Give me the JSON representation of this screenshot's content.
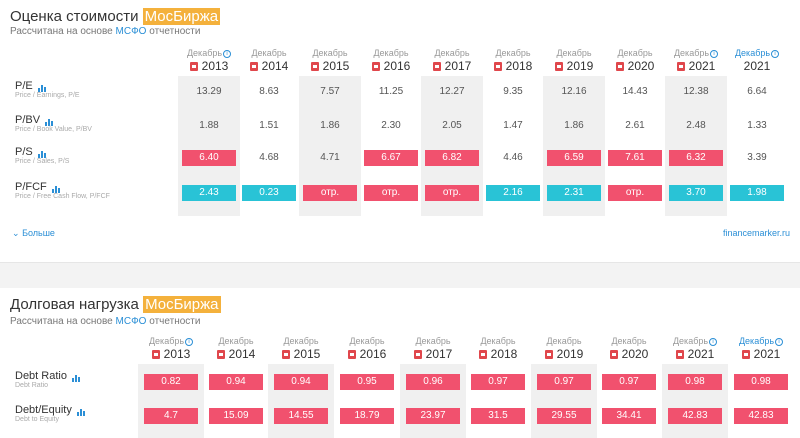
{
  "valuation": {
    "title": "Оценка стоимости",
    "title_highlight": "МосБиржа",
    "subtitle_prefix": "Рассчитана на основе",
    "subtitle_link": "МСФО",
    "subtitle_suffix": "отчетности",
    "columns": [
      {
        "month": "Декабрь",
        "year": "2013",
        "info": true
      },
      {
        "month": "Декабрь",
        "year": "2014",
        "info": false
      },
      {
        "month": "Декабрь",
        "year": "2015",
        "info": false
      },
      {
        "month": "Декабрь",
        "year": "2016",
        "info": false
      },
      {
        "month": "Декабрь",
        "year": "2017",
        "info": false
      },
      {
        "month": "Декабрь",
        "year": "2018",
        "info": false
      },
      {
        "month": "Декабрь",
        "year": "2019",
        "info": false
      },
      {
        "month": "Декабрь",
        "year": "2020",
        "info": false
      },
      {
        "month": "Декабрь",
        "year": "2021",
        "info": true
      },
      {
        "month": "Декабрь",
        "year": "2021",
        "info": true,
        "blue": true,
        "nopdf": true
      }
    ],
    "rows": [
      {
        "label": "P/E",
        "sub": "Price / Earnings, P/E",
        "values": [
          "13.29",
          "8.63",
          "7.57",
          "11.25",
          "12.27",
          "9.35",
          "12.16",
          "14.43",
          "12.38",
          "6.64"
        ],
        "styles": [
          "",
          "",
          "",
          "",
          "",
          "",
          "",
          "",
          "",
          ""
        ]
      },
      {
        "label": "P/BV",
        "sub": "Price / Book Value, P/BV",
        "values": [
          "1.88",
          "1.51",
          "1.86",
          "2.30",
          "2.05",
          "1.47",
          "1.86",
          "2.61",
          "2.48",
          "1.33"
        ],
        "styles": [
          "",
          "",
          "",
          "",
          "",
          "",
          "",
          "",
          "",
          ""
        ]
      },
      {
        "label": "P/S",
        "sub": "Price / Sales, P/S",
        "values": [
          "6.40",
          "4.68",
          "4.71",
          "6.67",
          "6.82",
          "4.46",
          "6.59",
          "7.61",
          "6.32",
          "3.39"
        ],
        "styles": [
          "red",
          "",
          "",
          "red",
          "red",
          "",
          "red",
          "red",
          "red",
          ""
        ]
      },
      {
        "label": "P/FCF",
        "sub": "Price / Free Cash Flow, P/FCF",
        "values": [
          "2.43",
          "0.23",
          "отр.",
          "отр.",
          "отр.",
          "2.16",
          "2.31",
          "отр.",
          "3.70",
          "1.98"
        ],
        "styles": [
          "cyan",
          "cyan",
          "red",
          "red",
          "red",
          "cyan",
          "cyan",
          "red",
          "cyan",
          "cyan"
        ]
      }
    ],
    "more_label": "Больше",
    "source": "financemarker.ru"
  },
  "debt": {
    "title": "Долговая нагрузка",
    "title_highlight": "МосБиржа",
    "subtitle_prefix": "Рассчитана на основе",
    "subtitle_link": "МСФО",
    "subtitle_suffix": "отчетности",
    "columns": [
      {
        "month": "Декабрь",
        "year": "2013",
        "info": true
      },
      {
        "month": "Декабрь",
        "year": "2014",
        "info": false
      },
      {
        "month": "Декабрь",
        "year": "2015",
        "info": false
      },
      {
        "month": "Декабрь",
        "year": "2016",
        "info": false
      },
      {
        "month": "Декабрь",
        "year": "2017",
        "info": false
      },
      {
        "month": "Декабрь",
        "year": "2018",
        "info": false
      },
      {
        "month": "Декабрь",
        "year": "2019",
        "info": false
      },
      {
        "month": "Декабрь",
        "year": "2020",
        "info": false
      },
      {
        "month": "Декабрь",
        "year": "2021",
        "info": true
      },
      {
        "month": "Декабрь",
        "year": "2021",
        "info": true,
        "blue": true
      }
    ],
    "rows": [
      {
        "label": "Debt Ratio",
        "sub": "Debt Ratio",
        "values": [
          "0.82",
          "0.94",
          "0.94",
          "0.95",
          "0.96",
          "0.97",
          "0.97",
          "0.97",
          "0.98",
          "0.98"
        ],
        "styles": [
          "red",
          "red",
          "red",
          "red",
          "red",
          "red",
          "red",
          "red",
          "red",
          "red"
        ]
      },
      {
        "label": "Debt/Equity",
        "sub": "Debt to Equity",
        "values": [
          "4.7",
          "15.09",
          "14.55",
          "18.79",
          "23.97",
          "31.5",
          "29.55",
          "34.41",
          "42.83",
          "42.83"
        ],
        "styles": [
          "red",
          "red",
          "red",
          "red",
          "red",
          "red",
          "red",
          "red",
          "red",
          "red"
        ]
      }
    ]
  },
  "colors": {
    "red": "#f1516e",
    "cyan": "#29c3d6",
    "highlight": "#f4b13c",
    "link": "#2b8fd6"
  },
  "icons": {
    "pdf": "pdf-icon",
    "info": "info-icon",
    "chart": "bar-chart-icon",
    "chevron": "chevron-down-icon"
  }
}
